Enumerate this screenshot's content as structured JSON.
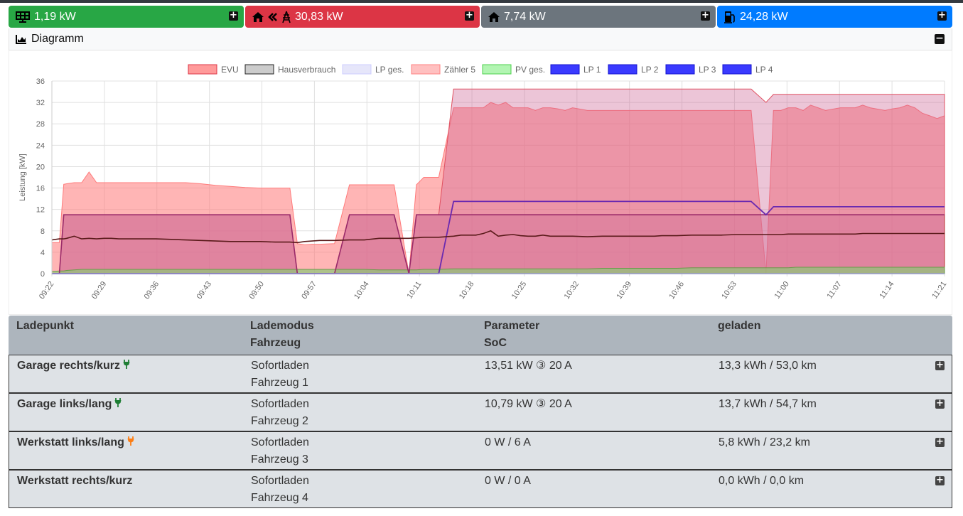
{
  "cards": {
    "pv": {
      "value": "1,19 kW",
      "color": "#28a745",
      "icon": "solar-panel-icon"
    },
    "evu": {
      "value": "30,83 kW",
      "color": "#dc3545",
      "icon": "home-import-grid-icon"
    },
    "house": {
      "value": "7,74 kW",
      "color": "#6c757d",
      "icon": "home-icon"
    },
    "lp": {
      "value": "24,28 kW",
      "color": "#007bff",
      "icon": "charging-station-icon"
    }
  },
  "diagram": {
    "title": "Diagramm",
    "collapse_icon": "minus-square-icon"
  },
  "chart_data": {
    "type": "area",
    "ylabel": "Leistung [kW]",
    "ylim": [
      0,
      36
    ],
    "yticks": [
      "0",
      "4",
      "8",
      "12",
      "16",
      "20",
      "24",
      "28",
      "32",
      "36"
    ],
    "xticks": [
      "09:22",
      "09:29",
      "09:36",
      "09:43",
      "09:50",
      "09:57",
      "10:04",
      "10:11",
      "10:18",
      "10:25",
      "10:32",
      "10:39",
      "10:46",
      "10:53",
      "11:00",
      "11:07",
      "11:14",
      "11:21"
    ],
    "legend": [
      {
        "name": "EVU",
        "fill": "#ff9a9a",
        "stroke": "#dc3545"
      },
      {
        "name": "Hausverbrauch",
        "fill": "#cccccc",
        "stroke": "#222222"
      },
      {
        "name": "LP ges.",
        "fill": "#e6e6fa",
        "stroke": "#ccccff"
      },
      {
        "name": "Zähler 5",
        "fill": "#ffc0c0",
        "stroke": "#ff8080"
      },
      {
        "name": "PV ges.",
        "fill": "#b2f5b2",
        "stroke": "#4cd04c"
      },
      {
        "name": "LP 1",
        "fill": "#3a3aff",
        "stroke": "#1111cc"
      },
      {
        "name": "LP 2",
        "fill": "#3a3aff",
        "stroke": "#1111cc"
      },
      {
        "name": "LP 3",
        "fill": "#3a3aff",
        "stroke": "#1111cc"
      },
      {
        "name": "LP 4",
        "fill": "#3a3aff",
        "stroke": "#1111cc"
      }
    ],
    "x_minutes": [
      0,
      1,
      1.6,
      2,
      3,
      4,
      5,
      6,
      7,
      8,
      9,
      10,
      11,
      12,
      14,
      16,
      18,
      20,
      22,
      24,
      26,
      28,
      30,
      32,
      33,
      34,
      35,
      36,
      38,
      40,
      42,
      44,
      46,
      48,
      49,
      50,
      52,
      54,
      55,
      56,
      57,
      58,
      59,
      60,
      61,
      62,
      63,
      64,
      65,
      66,
      67,
      68,
      69,
      70,
      72,
      74,
      76,
      77,
      78,
      79,
      80,
      81,
      82,
      83,
      84,
      86,
      88,
      90,
      92,
      94,
      96,
      97,
      98,
      99,
      100,
      101,
      102,
      103,
      104,
      106,
      108,
      109,
      110,
      112,
      113,
      114,
      115,
      116,
      117,
      118,
      119,
      120
    ],
    "series": [
      {
        "name": "EVU",
        "values": [
          5.8,
          5.8,
          16.7,
          16.8,
          17,
          17,
          19,
          17,
          17,
          17,
          17,
          17,
          17,
          17,
          17,
          17,
          17,
          16.8,
          16.5,
          16.3,
          16.1,
          16,
          16,
          16,
          5.6,
          5.4,
          5.5,
          5.5,
          5.6,
          16.6,
          16.6,
          16.6,
          16.6,
          0,
          16.6,
          18,
          18,
          31,
          31,
          31,
          31,
          31,
          32,
          31.5,
          32,
          31,
          31,
          31,
          30.5,
          31,
          31,
          30.8,
          30.5,
          31,
          30.5,
          30.5,
          30.5,
          30.5,
          30.5,
          30.5,
          30.5,
          30.5,
          30.5,
          30.5,
          30.5,
          30.5,
          30.5,
          30.5,
          30.5,
          30.5,
          0,
          30.5,
          30.5,
          31,
          31,
          30.5,
          31.5,
          31,
          30.5,
          31,
          31,
          31.5,
          31,
          30.5,
          30.8,
          31,
          31.5,
          31,
          30,
          29.5,
          29,
          29.5
        ]
      },
      {
        "name": "Hausverbrauch",
        "values": [
          6.3,
          6.5,
          6.5,
          6.6,
          7,
          6.5,
          6.6,
          6.5,
          6.6,
          6.6,
          6.5,
          6.5,
          6.5,
          6.5,
          6.5,
          6.4,
          6.3,
          6.2,
          6.1,
          6,
          6,
          6,
          5.9,
          5.9,
          5.8,
          6,
          6.1,
          6.2,
          6.2,
          6.3,
          6.3,
          6.6,
          6.6,
          6.6,
          6.7,
          6.8,
          6.8,
          7,
          7.2,
          7.2,
          7.2,
          7.5,
          8,
          7,
          7.2,
          7.3,
          7.1,
          7,
          7,
          7.2,
          7,
          7,
          7,
          7,
          6.9,
          7,
          7,
          7,
          7,
          7,
          7,
          7,
          7.1,
          7.1,
          7.1,
          7.2,
          7.2,
          7.2,
          7.3,
          7.3,
          7.3,
          7.3,
          7.3,
          7.4,
          7.4,
          7.4,
          7.4,
          7.4,
          7.4,
          7.4,
          7.4,
          7.5,
          7.5,
          7.5,
          7.5,
          7.5,
          7.5,
          7.5,
          7.5,
          7.5,
          7.5,
          7.5
        ]
      },
      {
        "name": "LP 1",
        "values": [
          0,
          0,
          11,
          11,
          11,
          11,
          11,
          11,
          11,
          11,
          11,
          11,
          11,
          11,
          11,
          11,
          11,
          11,
          11,
          11,
          11,
          11,
          11,
          11,
          0,
          0,
          0,
          0,
          0,
          11,
          11,
          11,
          11,
          0,
          11,
          11,
          11,
          11,
          11,
          11,
          11,
          11,
          11,
          11,
          11,
          11,
          11,
          11,
          11,
          11,
          11,
          11,
          11,
          11,
          11,
          11,
          11,
          11,
          11,
          11,
          11,
          11,
          11,
          11,
          11,
          11,
          11,
          11,
          11,
          11,
          11,
          11,
          11,
          11,
          11,
          11,
          11,
          11,
          11,
          11,
          11,
          11,
          11,
          11,
          11,
          11,
          11,
          11,
          11,
          11,
          11,
          11
        ]
      },
      {
        "name": "LP 2",
        "values": [
          0,
          0,
          0,
          0,
          0,
          0,
          0,
          0,
          0,
          0,
          0,
          0,
          0,
          0,
          0,
          0,
          0,
          0,
          0,
          0,
          0,
          0,
          0,
          0,
          0,
          0,
          0,
          0,
          0,
          0,
          0,
          0,
          0,
          0,
          0,
          0,
          0,
          13.5,
          13.5,
          13.5,
          13.5,
          13.5,
          13.5,
          13.5,
          13.5,
          13.5,
          13.5,
          13.5,
          13.5,
          13.5,
          13.5,
          13.5,
          13.5,
          13.5,
          13.5,
          13.5,
          13.5,
          13.5,
          13.5,
          13.5,
          13.5,
          13.5,
          13.5,
          13.5,
          13.5,
          13.5,
          13.5,
          13.5,
          13.5,
          13.5,
          11,
          12.5,
          12.5,
          12.5,
          12.5,
          12.5,
          12.5,
          12.5,
          12.5,
          12.5,
          12.5,
          12.5,
          12.5,
          12.5,
          12.5,
          12.5,
          12.5,
          12.5,
          12.5,
          12.5,
          12.5,
          12.5
        ]
      },
      {
        "name": "PV ges.",
        "values": [
          0.4,
          0.5,
          0.5,
          0.6,
          0.7,
          0.8,
          0.8,
          0.8,
          0.8,
          0.8,
          0.8,
          0.8,
          0.8,
          0.8,
          0.8,
          0.8,
          0.8,
          0.8,
          0.8,
          0.8,
          0.8,
          0.8,
          0.8,
          0.8,
          0.8,
          0.8,
          0.8,
          0.8,
          0.8,
          0.8,
          0.8,
          0.7,
          0.7,
          0.7,
          0.7,
          0.8,
          0.8,
          0.9,
          0.9,
          0.9,
          0.9,
          0.9,
          0.9,
          0.9,
          0.9,
          0.9,
          0.9,
          0.9,
          0.9,
          0.9,
          0.9,
          0.9,
          0.9,
          0.9,
          0.9,
          1,
          1,
          1,
          1,
          1,
          1,
          1,
          1,
          1,
          1,
          1.1,
          1.1,
          1.1,
          1.1,
          1.1,
          1.1,
          1.1,
          1.1,
          1.1,
          1.2,
          1.2,
          1.2,
          1.2,
          1.2,
          1.2,
          1.2,
          1.2,
          1.2,
          1.2,
          1.2,
          1.2,
          1.2,
          1.2,
          1.2,
          1.2,
          1.2,
          1.2
        ]
      }
    ]
  },
  "table": {
    "headers": [
      [
        "Ladepunkt",
        ""
      ],
      [
        "Lademodus",
        "Fahrzeug"
      ],
      [
        "Parameter",
        "SoC"
      ],
      [
        "geladen",
        ""
      ]
    ],
    "rows": [
      {
        "name": "Garage rechts/kurz",
        "plug": "green",
        "mode": "Sofortladen",
        "vehicle": "Fahrzeug 1",
        "param": "13,51 kW ③ 20 A",
        "charged": "13,3 kWh / 53,0 km"
      },
      {
        "name": "Garage links/lang",
        "plug": "green",
        "mode": "Sofortladen",
        "vehicle": "Fahrzeug 2",
        "param": "10,79 kW ③ 20 A",
        "charged": "13,7 kWh / 54,7 km"
      },
      {
        "name": "Werkstatt links/lang",
        "plug": "orange",
        "mode": "Sofortladen",
        "vehicle": "Fahrzeug 3",
        "param": "0 W / 6 A",
        "charged": "5,8 kWh / 23,2 km"
      },
      {
        "name": "Werkstatt rechts/kurz",
        "plug": "none",
        "mode": "Sofortladen",
        "vehicle": "Fahrzeug 4",
        "param": "0 W / 0 A",
        "charged": "0,0 kWh / 0,0 km"
      }
    ]
  }
}
